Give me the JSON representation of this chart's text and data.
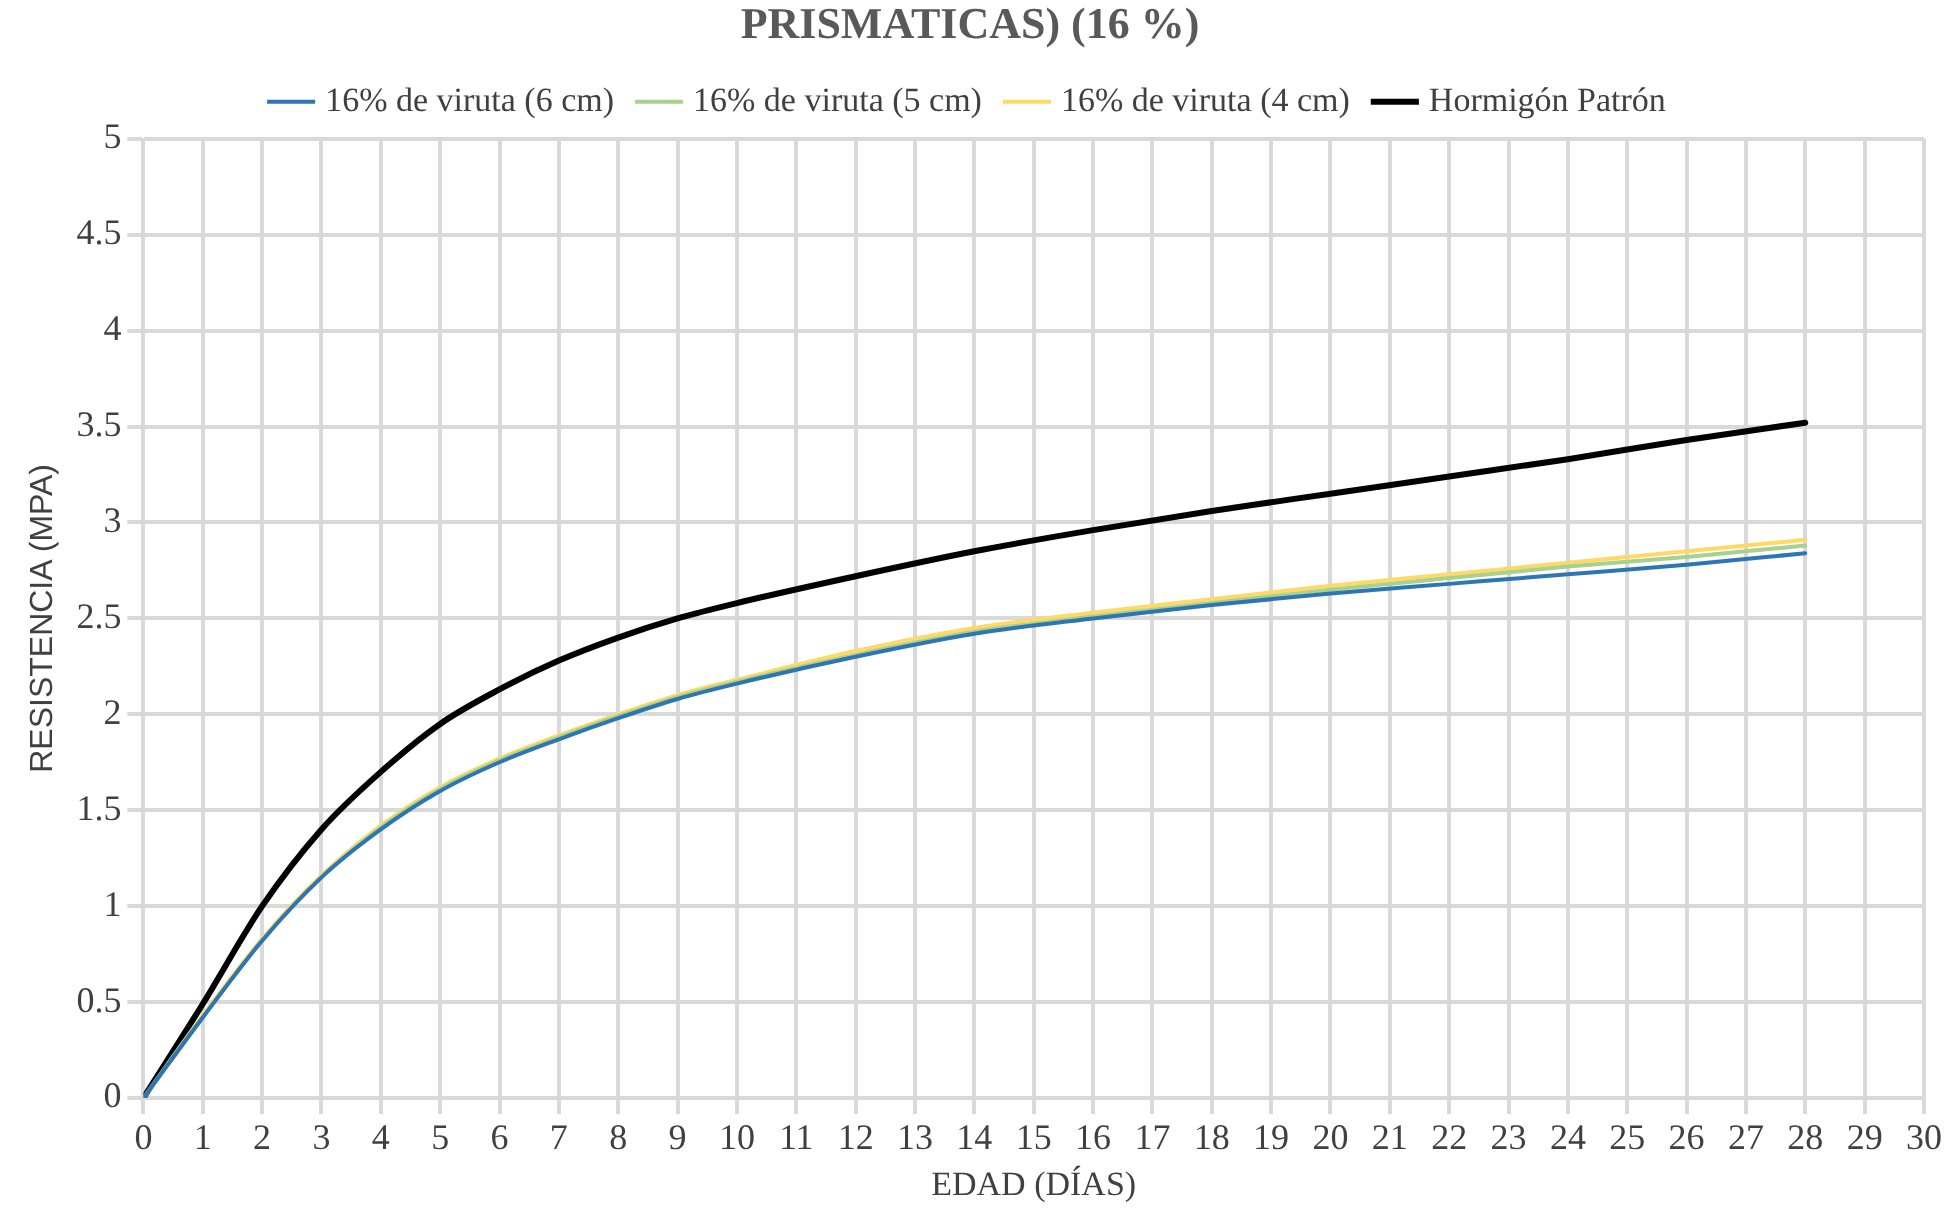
{
  "chart_data": {
    "type": "line",
    "title": "PRISMATICAS) (16 %)",
    "xlabel": "EDAD (DÍAS)",
    "ylabel": "RESISTENCIA (MPA)",
    "x": [
      0,
      1,
      2,
      3,
      4,
      5,
      6,
      7,
      8,
      9,
      10,
      12,
      14,
      16,
      18,
      20,
      22,
      24,
      26,
      28
    ],
    "series": [
      {
        "name": "Hormigón Patrón",
        "color": "#000000",
        "values": [
          0,
          0.49,
          1.0,
          1.4,
          1.7,
          1.95,
          2.13,
          2.28,
          2.4,
          2.5,
          2.58,
          2.72,
          2.85,
          2.96,
          3.06,
          3.15,
          3.24,
          3.33,
          3.43,
          3.52
        ]
      },
      {
        "name": "16% de viruta (4 cm)",
        "color": "#ffd966",
        "values": [
          0,
          0.43,
          0.83,
          1.16,
          1.42,
          1.62,
          1.77,
          1.89,
          2.0,
          2.1,
          2.18,
          2.33,
          2.45,
          2.53,
          2.6,
          2.67,
          2.73,
          2.79,
          2.85,
          2.91
        ]
      },
      {
        "name": "16% de viruta (5 cm)",
        "color": "#a9d18e",
        "values": [
          0,
          0.42,
          0.82,
          1.15,
          1.41,
          1.61,
          1.76,
          1.88,
          1.99,
          2.09,
          2.17,
          2.31,
          2.43,
          2.51,
          2.58,
          2.65,
          2.71,
          2.77,
          2.82,
          2.88
        ]
      },
      {
        "name": "16% de viruta (6 cm)",
        "color": "#2e75b6",
        "values": [
          0,
          0.42,
          0.82,
          1.15,
          1.4,
          1.6,
          1.75,
          1.87,
          1.98,
          2.08,
          2.16,
          2.3,
          2.42,
          2.5,
          2.57,
          2.63,
          2.68,
          2.73,
          2.78,
          2.84
        ]
      }
    ],
    "xlim": [
      0,
      30
    ],
    "xticks": [
      0,
      1,
      2,
      3,
      4,
      5,
      6,
      7,
      8,
      9,
      10,
      11,
      12,
      13,
      14,
      15,
      16,
      17,
      18,
      19,
      20,
      21,
      22,
      23,
      24,
      25,
      26,
      27,
      28,
      29,
      30
    ],
    "ylim": [
      0,
      5
    ],
    "yticks": [
      0,
      0.5,
      1,
      1.5,
      2,
      2.5,
      3,
      3.5,
      4,
      4.5,
      5
    ],
    "grid": true,
    "legend": "top",
    "marker": "none",
    "line_style": "solid"
  }
}
